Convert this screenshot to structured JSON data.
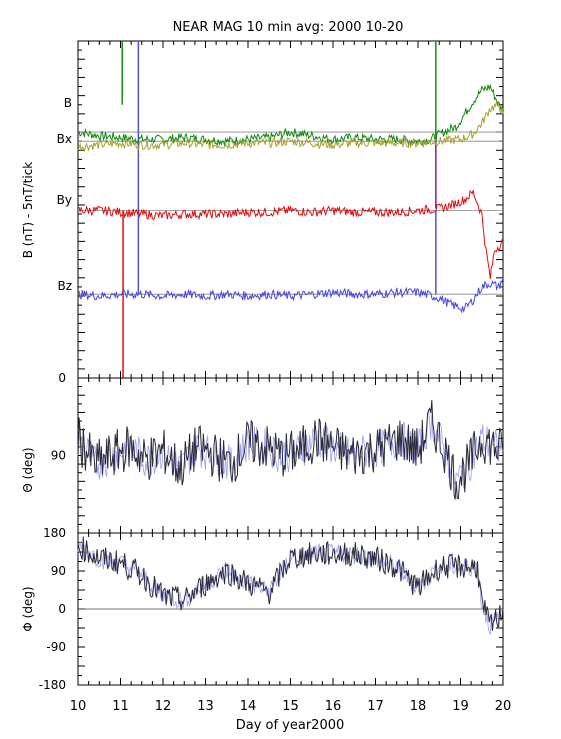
{
  "chart_data": {
    "type": "line",
    "title": "NEAR MAG 10 min avg: 2000 10-20",
    "xlabel": "Day of year2000",
    "xlim": [
      10,
      20
    ],
    "x_ticks": [
      "10",
      "11",
      "12",
      "13",
      "14",
      "15",
      "16",
      "17",
      "18",
      "19",
      "20"
    ],
    "panels": [
      {
        "id": "b",
        "ylabel": "B  (nT) - 5nT/tick",
        "y_tick_labels": [
          {
            "value": 0,
            "label": "0"
          }
        ],
        "series": [
          {
            "name": "B",
            "color": "#118a11",
            "baseline": 135,
            "x": [
              10,
              10.5,
              11,
              11.5,
              12,
              12.5,
              13,
              13.5,
              14,
              14.5,
              15,
              15.5,
              16,
              16.5,
              17,
              17.5,
              18,
              18.3,
              18.6,
              18.9,
              19.1,
              19.3,
              19.5,
              19.7,
              19.9,
              20
            ],
            "y": [
              135,
              133,
              132,
              131,
              131,
              132,
              131,
              130,
              131,
              132,
              135,
              133,
              131,
              132,
              131,
              131,
              130,
              131,
              135,
              138,
              145,
              152,
              158,
              160,
              150,
              147
            ]
          },
          {
            "name": "Bx",
            "color": "#a8a030",
            "baseline": 130,
            "x": [
              10,
              10.5,
              11,
              11.5,
              12,
              12.5,
              13,
              13.5,
              14,
              14.5,
              15,
              15.5,
              16,
              16.5,
              17,
              17.5,
              18,
              18.5,
              19,
              19.3,
              19.5,
              19.7,
              19.9,
              20
            ],
            "y": [
              127,
              128,
              129,
              128,
              128,
              129,
              128,
              128,
              129,
              129,
              130,
              129,
              128,
              129,
              129,
              129,
              129,
              130,
              131,
              134,
              140,
              148,
              150,
              145
            ]
          },
          {
            "name": "By",
            "color": "#e01010",
            "baseline": 92,
            "x": [
              10,
              10.5,
              11,
              11.5,
              12,
              12.5,
              13,
              13.5,
              14,
              14.5,
              15,
              15.5,
              16,
              16.5,
              17,
              17.5,
              18,
              18.5,
              18.8,
              19.1,
              19.3,
              19.5,
              19.6,
              19.7,
              19.8,
              20
            ],
            "y": [
              92,
              92,
              91,
              90,
              89,
              90,
              90,
              90,
              91,
              91,
              92,
              91,
              92,
              91,
              91,
              91,
              92,
              93,
              95,
              98,
              102,
              90,
              70,
              55,
              70,
              75
            ]
          },
          {
            "name": "Bz",
            "color": "#4848e0",
            "baseline": 46,
            "x": [
              10,
              10.5,
              11,
              11.5,
              12,
              12.5,
              13,
              13.5,
              14,
              14.5,
              15,
              15.5,
              16,
              16.5,
              17,
              17.5,
              18,
              18.5,
              18.8,
              19.1,
              19.3,
              19.5,
              19.7,
              19.9,
              20
            ],
            "y": [
              46,
              45,
              46,
              46,
              45,
              46,
              45,
              46,
              45,
              46,
              45,
              46,
              47,
              46,
              46,
              47,
              47,
              44,
              40,
              38,
              43,
              50,
              52,
              50,
              55
            ]
          }
        ],
        "event_lines": [
          {
            "x": 11.04,
            "color": "#118a11",
            "y_range": [
              150,
              185
            ]
          },
          {
            "x": 11.06,
            "color": "#e01010",
            "y_range": [
              0,
              92
            ]
          },
          {
            "x": 11.42,
            "color": "#5050d0",
            "y_range": [
              46,
              185
            ]
          },
          {
            "x": 18.42,
            "color": "#118a11",
            "y_range": [
              131,
              185
            ]
          },
          {
            "x": 18.42,
            "color": "#8a1a8a",
            "y_range": [
              93,
              130
            ]
          },
          {
            "x": 18.42,
            "color": "#5050d0",
            "y_range": [
              46,
              92
            ]
          }
        ],
        "ylim": [
          0,
          185
        ]
      },
      {
        "id": "theta",
        "ylabel": "Θ (deg)",
        "y_tick_labels": [
          {
            "value": 90,
            "label": "90"
          }
        ],
        "ylim": [
          0,
          180
        ],
        "series": [
          {
            "name": "",
            "color": "#2a2a3a",
            "x": [
              10,
              10.4,
              10.8,
              11.2,
              11.6,
              12,
              12.4,
              12.8,
              13.2,
              13.6,
              14,
              14.4,
              14.8,
              15.2,
              15.6,
              16,
              16.4,
              16.8,
              17.2,
              17.6,
              18,
              18.3,
              18.6,
              18.9,
              19.2,
              19.5,
              19.8,
              20
            ],
            "y": [
              110,
              80,
              90,
              100,
              85,
              95,
              75,
              100,
              90,
              80,
              105,
              100,
              90,
              95,
              110,
              100,
              90,
              95,
              100,
              110,
              95,
              130,
              100,
              60,
              80,
              110,
              100,
              95
            ]
          }
        ]
      },
      {
        "id": "phi",
        "ylabel": "Φ (deg)",
        "y_tick_labels": [
          {
            "value": 180,
            "label": "180"
          },
          {
            "value": 90,
            "label": "90"
          },
          {
            "value": 0,
            "label": "0"
          },
          {
            "value": -90,
            "label": "-90"
          },
          {
            "value": -180,
            "label": "-180"
          }
        ],
        "ylim": [
          -180,
          180
        ],
        "series": [
          {
            "name": "",
            "color": "#2a2a3a",
            "x": [
              10,
              10.5,
              11,
              11.5,
              12,
              12.5,
              13,
              13.5,
              14,
              14.5,
              15,
              15.5,
              16,
              16.5,
              17,
              17.5,
              18,
              18.5,
              19,
              19.4,
              19.5,
              19.7,
              19.9,
              20
            ],
            "y": [
              150,
              120,
              110,
              80,
              30,
              20,
              60,
              90,
              60,
              40,
              120,
              130,
              130,
              130,
              120,
              100,
              50,
              100,
              100,
              100,
              10,
              -40,
              -20,
              0
            ]
          }
        ]
      }
    ]
  }
}
